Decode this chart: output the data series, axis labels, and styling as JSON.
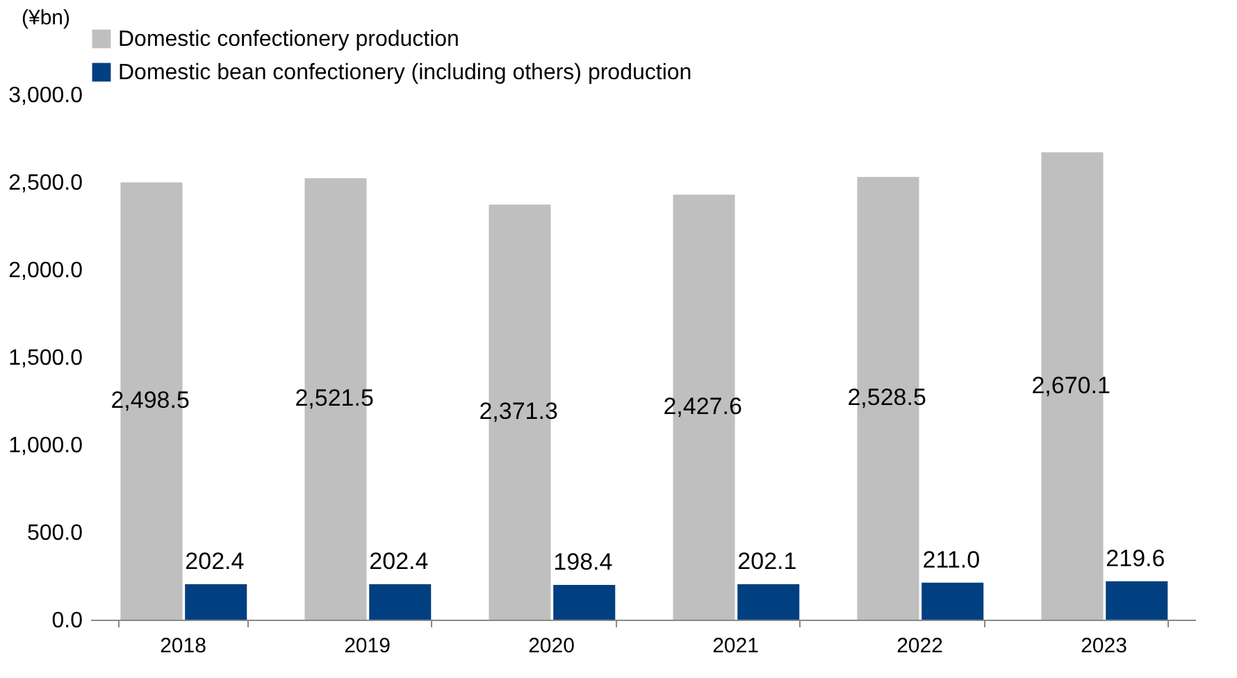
{
  "chart_data": {
    "type": "bar",
    "ylabel": "(¥bn)",
    "categories": [
      "2018",
      "2019",
      "2020",
      "2021",
      "2022",
      "2023"
    ],
    "series": [
      {
        "name": "Domestic confectionery production",
        "color": "#bfbfbf",
        "values": [
          2498.5,
          2521.5,
          2371.3,
          2427.6,
          2528.5,
          2670.1
        ],
        "value_labels": [
          "2,498.5",
          "2,521.5",
          "2,371.3",
          "2,427.6",
          "2,528.5",
          "2,670.1"
        ]
      },
      {
        "name": "Domestic bean confectionery (including others) production",
        "color": "#003f80",
        "values": [
          202.4,
          202.4,
          198.4,
          202.1,
          211.0,
          219.6
        ],
        "value_labels": [
          "202.4",
          "202.4",
          "198.4",
          "202.1",
          "211.0",
          "219.6"
        ]
      }
    ],
    "ylim": [
      0,
      3000
    ],
    "yticks": [
      {
        "value": 0,
        "label": "0.0"
      },
      {
        "value": 500,
        "label": "500.0"
      },
      {
        "value": 1000,
        "label": "1,000.0"
      },
      {
        "value": 1500,
        "label": "1,500.0"
      },
      {
        "value": 2000,
        "label": "2,000.0"
      },
      {
        "value": 2500,
        "label": "2,500.0"
      },
      {
        "value": 3000,
        "label": "3,000.0"
      }
    ],
    "legend": "top",
    "grid": false
  }
}
